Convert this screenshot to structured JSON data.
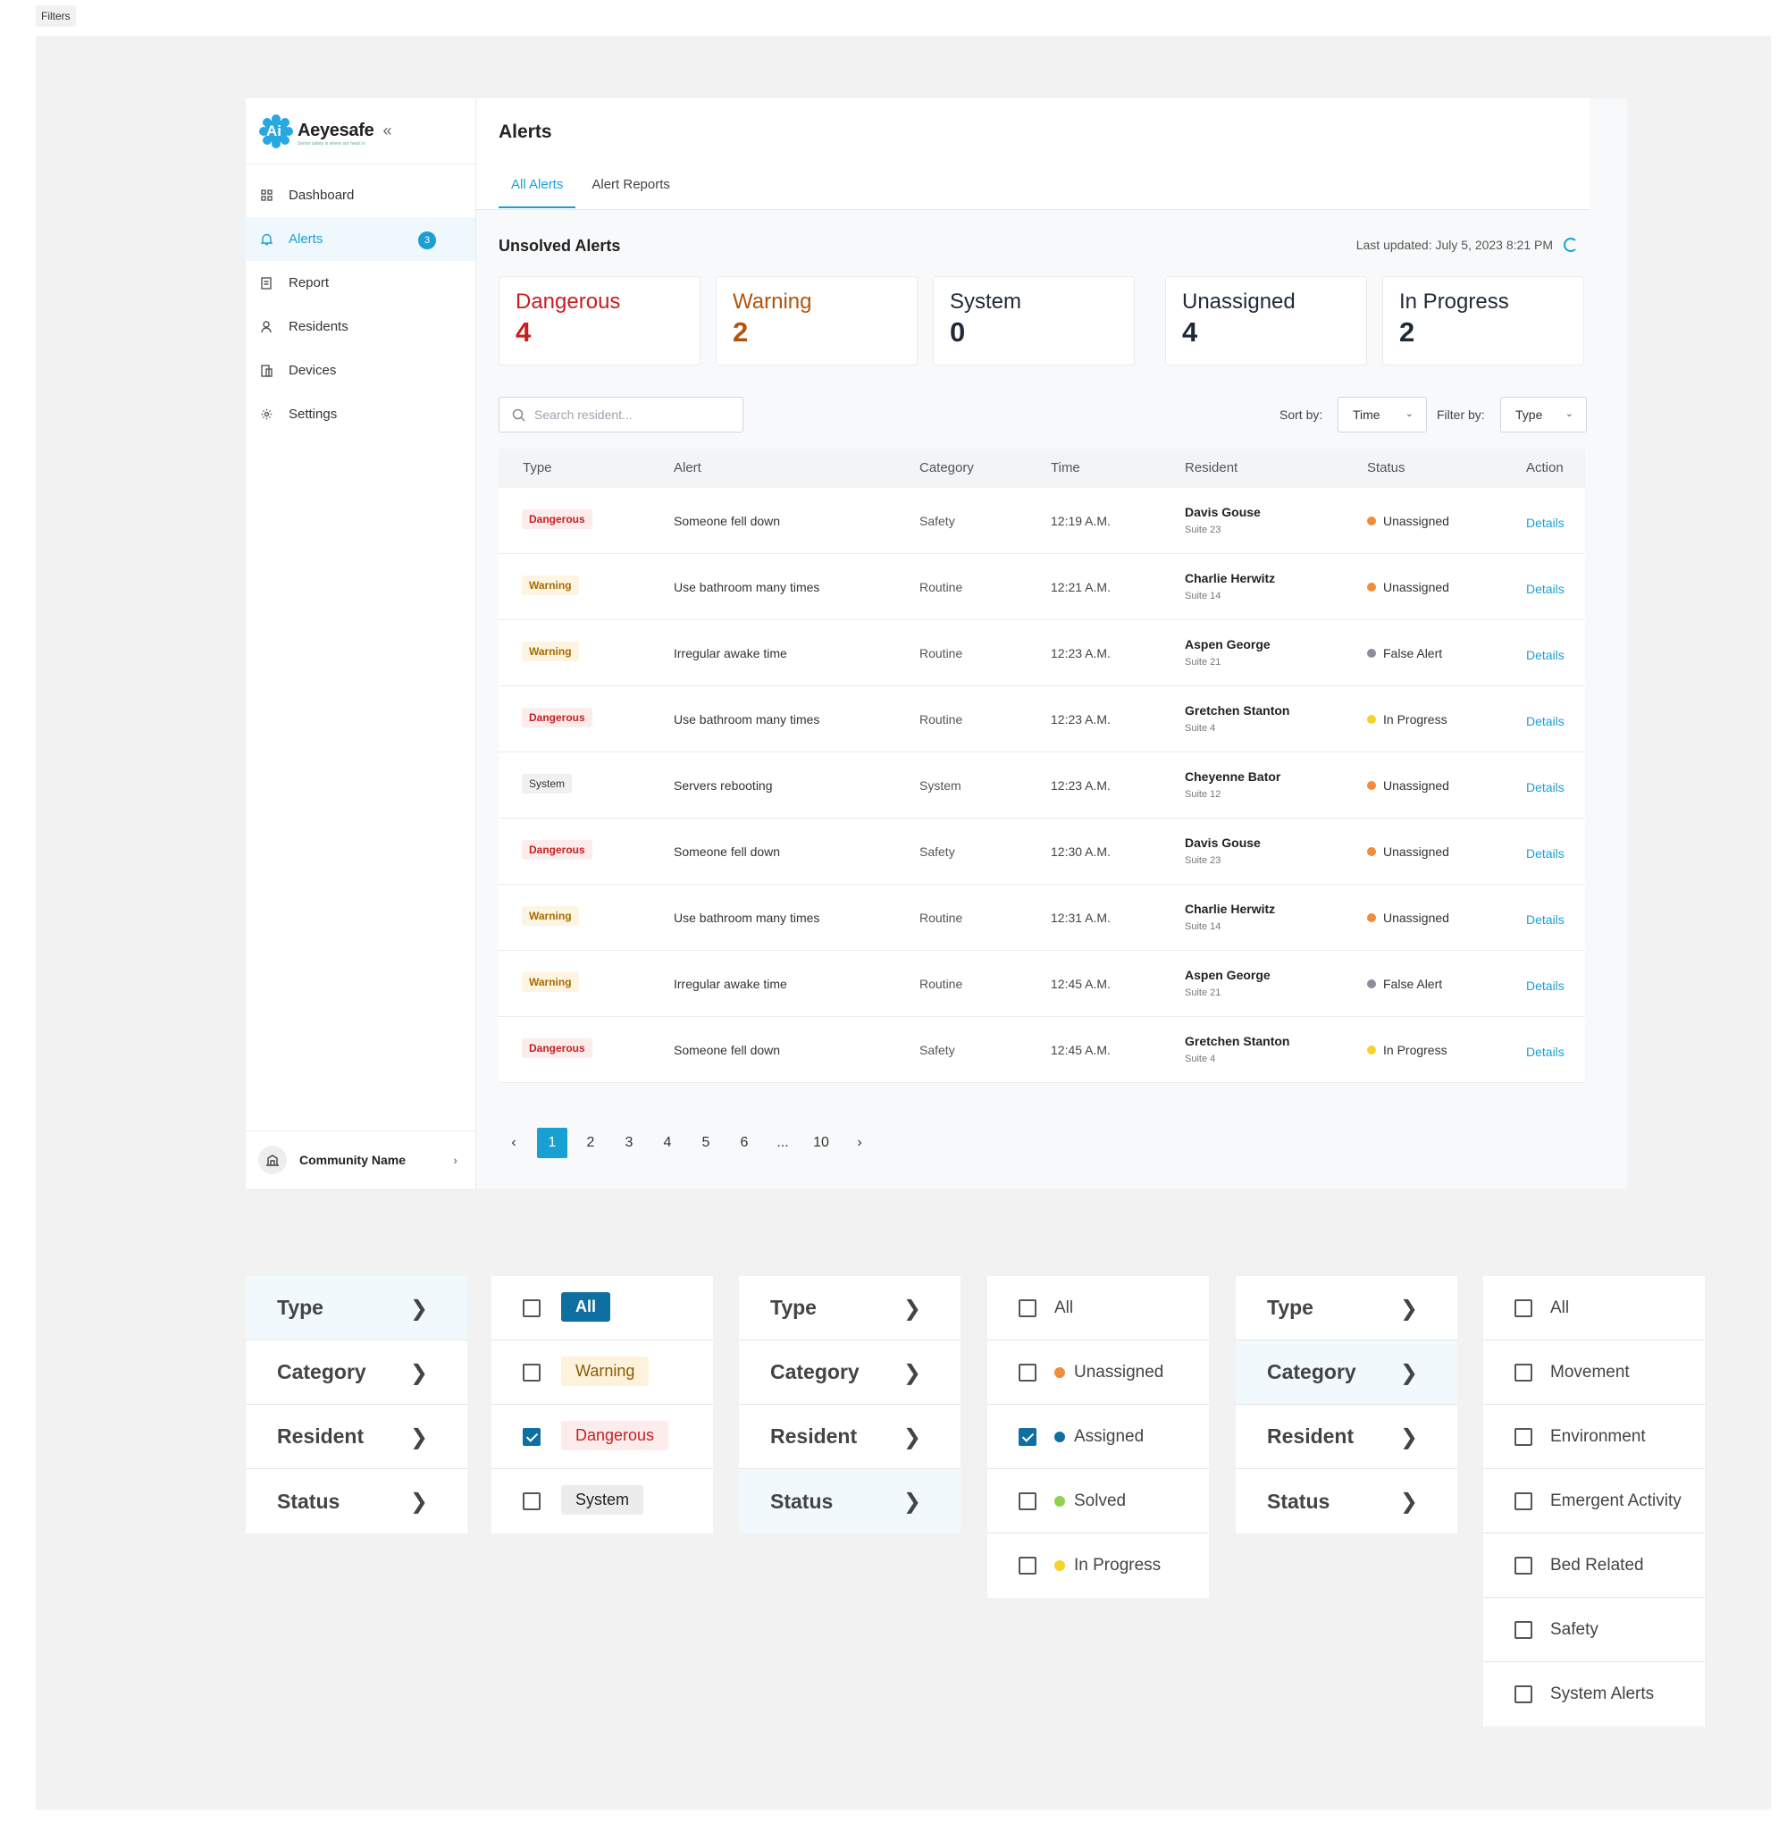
{
  "frame_label": "Filters",
  "brand": {
    "name": "Aeyesafe",
    "tagline": "Senior safety is where our heart is",
    "logo_text": "Ai"
  },
  "sidebar": {
    "items": [
      {
        "label": "Dashboard",
        "icon": "grid-icon"
      },
      {
        "label": "Alerts",
        "icon": "bell-icon",
        "badge": "3",
        "active": true
      },
      {
        "label": "Report",
        "icon": "document-icon"
      },
      {
        "label": "Residents",
        "icon": "user-icon"
      },
      {
        "label": "Devices",
        "icon": "device-icon"
      },
      {
        "label": "Settings",
        "icon": "gear-icon"
      }
    ],
    "community": "Community Name"
  },
  "header": {
    "title": "Alerts",
    "tabs": [
      "All Alerts",
      "Alert Reports"
    ]
  },
  "summary": {
    "title": "Unsolved Alerts",
    "last_updated": "Last updated: July 5, 2023 8:21 PM",
    "cards": [
      {
        "label": "Dangerous",
        "value": "4",
        "color": "#c81e1e"
      },
      {
        "label": "Warning",
        "value": "2",
        "color": "#b45309"
      },
      {
        "label": "System",
        "value": "0",
        "color": "#1f2937"
      },
      {
        "label": "Unassigned",
        "value": "4",
        "color": "#1f2937"
      },
      {
        "label": "In Progress",
        "value": "2",
        "color": "#1f2937"
      }
    ]
  },
  "toolbar": {
    "search_placeholder": "Search resident...",
    "sort_label": "Sort by:",
    "sort_value": "Time",
    "filter_label": "Filter by:",
    "filter_value": "Type"
  },
  "table": {
    "columns": [
      "Type",
      "Alert",
      "Category",
      "Time",
      "Resident",
      "Status",
      "Action"
    ],
    "rows": [
      {
        "type": "Dangerous",
        "alert": "Someone fell down",
        "category": "Safety",
        "time": "12:19 A.M.",
        "resident": "Davis Gouse",
        "suite": "Suite 23",
        "status": "Unassigned",
        "action": "Details"
      },
      {
        "type": "Warning",
        "alert": "Use bathroom many times",
        "category": "Routine",
        "time": "12:21 A.M.",
        "resident": "Charlie Herwitz",
        "suite": "Suite 14",
        "status": "Unassigned",
        "action": "Details"
      },
      {
        "type": "Warning",
        "alert": "Irregular awake time",
        "category": "Routine",
        "time": "12:23 A.M.",
        "resident": "Aspen George",
        "suite": "Suite 21",
        "status": "False Alert",
        "action": "Details"
      },
      {
        "type": "Dangerous",
        "alert": "Use bathroom many times",
        "category": "Routine",
        "time": "12:23 A.M.",
        "resident": "Gretchen Stanton",
        "suite": "Suite 4",
        "status": "In Progress",
        "action": "Details"
      },
      {
        "type": "System",
        "alert": "Servers rebooting",
        "category": "System",
        "time": "12:23 A.M.",
        "resident": "Cheyenne Bator",
        "suite": "Suite 12",
        "status": "Unassigned",
        "action": "Details"
      },
      {
        "type": "Dangerous",
        "alert": "Someone fell down",
        "category": "Safety",
        "time": "12:30 A.M.",
        "resident": "Davis Gouse",
        "suite": "Suite 23",
        "status": "Unassigned",
        "action": "Details"
      },
      {
        "type": "Warning",
        "alert": "Use bathroom many times",
        "category": "Routine",
        "time": "12:31 A.M.",
        "resident": "Charlie Herwitz",
        "suite": "Suite 14",
        "status": "Unassigned",
        "action": "Details"
      },
      {
        "type": "Warning",
        "alert": "Irregular awake time",
        "category": "Routine",
        "time": "12:45 A.M.",
        "resident": "Aspen George",
        "suite": "Suite 21",
        "status": "False Alert",
        "action": "Details"
      },
      {
        "type": "Dangerous",
        "alert": "Someone fell down",
        "category": "Safety",
        "time": "12:45 A.M.",
        "resident": "Gretchen Stanton",
        "suite": "Suite 4",
        "status": "In Progress",
        "action": "Details"
      }
    ]
  },
  "status_colors": {
    "Unassigned": "#f08c3a",
    "False Alert": "#8a8f98",
    "In Progress": "#f5d327",
    "Assigned": "#0f6fa0",
    "Solved": "#8fd14f"
  },
  "pagination": {
    "pages": [
      "1",
      "2",
      "3",
      "4",
      "5",
      "6",
      "...",
      "10"
    ],
    "current": "1"
  },
  "filter_menus": {
    "categories": [
      "Type",
      "Category",
      "Resident",
      "Status"
    ],
    "type_options": [
      {
        "label": "All",
        "checked": false
      },
      {
        "label": "Warning",
        "checked": false
      },
      {
        "label": "Dangerous",
        "checked": true
      },
      {
        "label": "System",
        "checked": false
      }
    ],
    "status_options": [
      {
        "label": "All",
        "checked": false
      },
      {
        "label": "Unassigned",
        "checked": false
      },
      {
        "label": "Assigned",
        "checked": true
      },
      {
        "label": "Solved",
        "checked": false
      },
      {
        "label": "In Progress",
        "checked": false
      }
    ],
    "category_options": [
      {
        "label": "All",
        "checked": false
      },
      {
        "label": "Movement",
        "checked": false
      },
      {
        "label": "Environment",
        "checked": false
      },
      {
        "label": "Emergent Activity",
        "checked": false
      },
      {
        "label": "Bed Related",
        "checked": false
      },
      {
        "label": "Safety",
        "checked": false
      },
      {
        "label": "System Alerts",
        "checked": false
      }
    ]
  }
}
